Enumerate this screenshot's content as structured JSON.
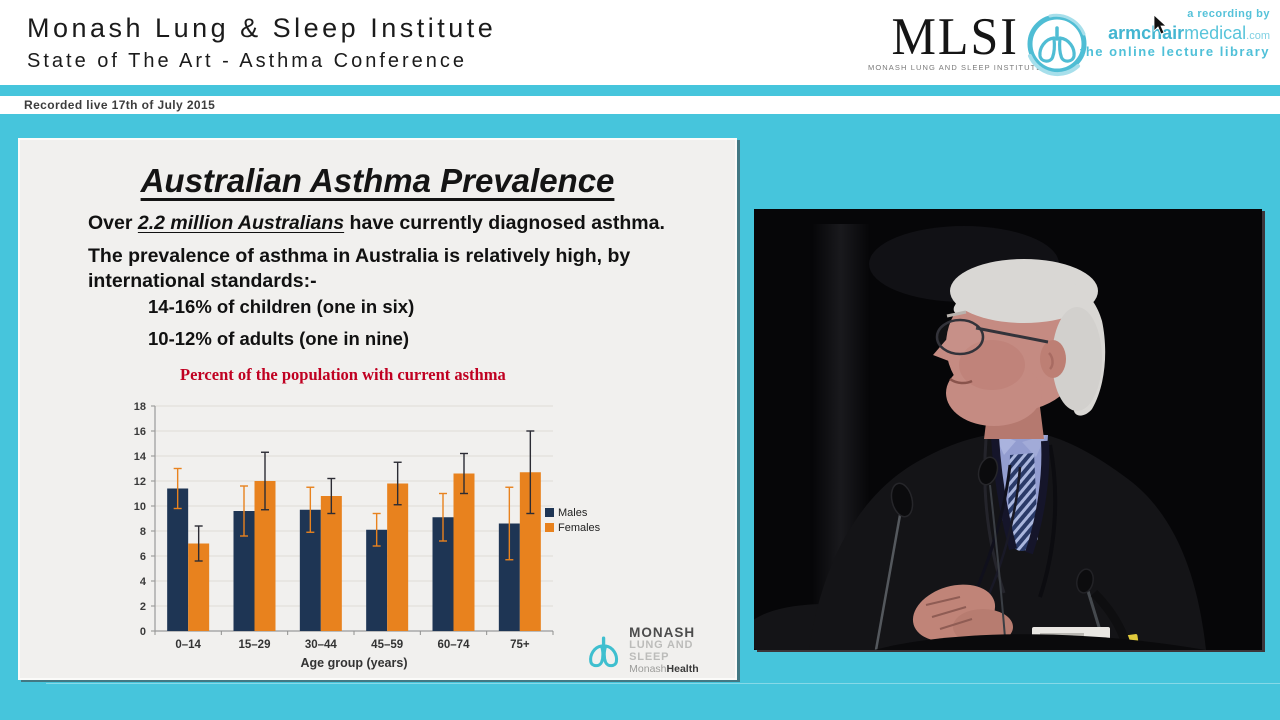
{
  "header": {
    "title": "Monash Lung & Sleep Institute",
    "subtitle": "State of The Art - Asthma Conference",
    "recorded": "Recorded live 17th of July 2015",
    "mlsi": {
      "wordmark": "MLSI",
      "caption": "MONASH LUNG AND SLEEP INSTITUTE"
    },
    "armchair": {
      "line1": "a recording by",
      "brand_bold": "armchair",
      "brand_rest": "medical",
      "brand_tld": ".com",
      "line2": "the online lecture library"
    }
  },
  "slide": {
    "title": "Australian Asthma Prevalence",
    "p1_prefix": "Over ",
    "p1_emphasis": "2.2 million Australians",
    "p1_suffix": " have currently diagnosed asthma.",
    "p2": "The prevalence of asthma in Australia is relatively high, by international standards:-",
    "bullet1": "14-16% of children (one in six)",
    "bullet2": "10-12% of adults (one in nine)",
    "chart_caption": "Percent of the population with current asthma",
    "footer_logo": {
      "line1": "MONASH",
      "line2": "LUNG AND SLEEP",
      "line3_light": "Monash",
      "line3_bold": "Health"
    }
  },
  "chart_data": {
    "type": "bar",
    "title": "Percent of the population with current asthma",
    "categories": [
      "0–14",
      "15–29",
      "30–44",
      "45–59",
      "60–74",
      "75+"
    ],
    "series": [
      {
        "name": "Males",
        "color": "#1e3554",
        "error_color": "#e8821e",
        "values": [
          11.4,
          9.6,
          9.7,
          8.1,
          9.1,
          8.6
        ],
        "error_low": [
          9.8,
          7.6,
          7.9,
          6.8,
          7.2,
          5.7
        ],
        "error_high": [
          13.0,
          11.6,
          11.5,
          9.4,
          11.0,
          11.5
        ]
      },
      {
        "name": "Females",
        "color": "#e8821e",
        "error_color": "#2c2c34",
        "values": [
          7.0,
          12.0,
          10.8,
          11.8,
          12.6,
          12.7
        ],
        "error_low": [
          5.6,
          9.7,
          9.4,
          10.1,
          11.0,
          9.4
        ],
        "error_high": [
          8.4,
          14.3,
          12.2,
          13.5,
          14.2,
          16.0
        ]
      }
    ],
    "xlabel": "Age group (years)",
    "ylabel": "",
    "ylim": [
      0,
      18
    ],
    "ytick_step": 2,
    "grid": true,
    "legend_position": "right"
  },
  "colors": {
    "background_cyan": "#46c5dc",
    "slide_bg": "#f1f0ee",
    "caption_red": "#c00021",
    "brand_teal": "#4fbdd4",
    "male_bar": "#1e3554",
    "female_bar": "#e8821e"
  }
}
